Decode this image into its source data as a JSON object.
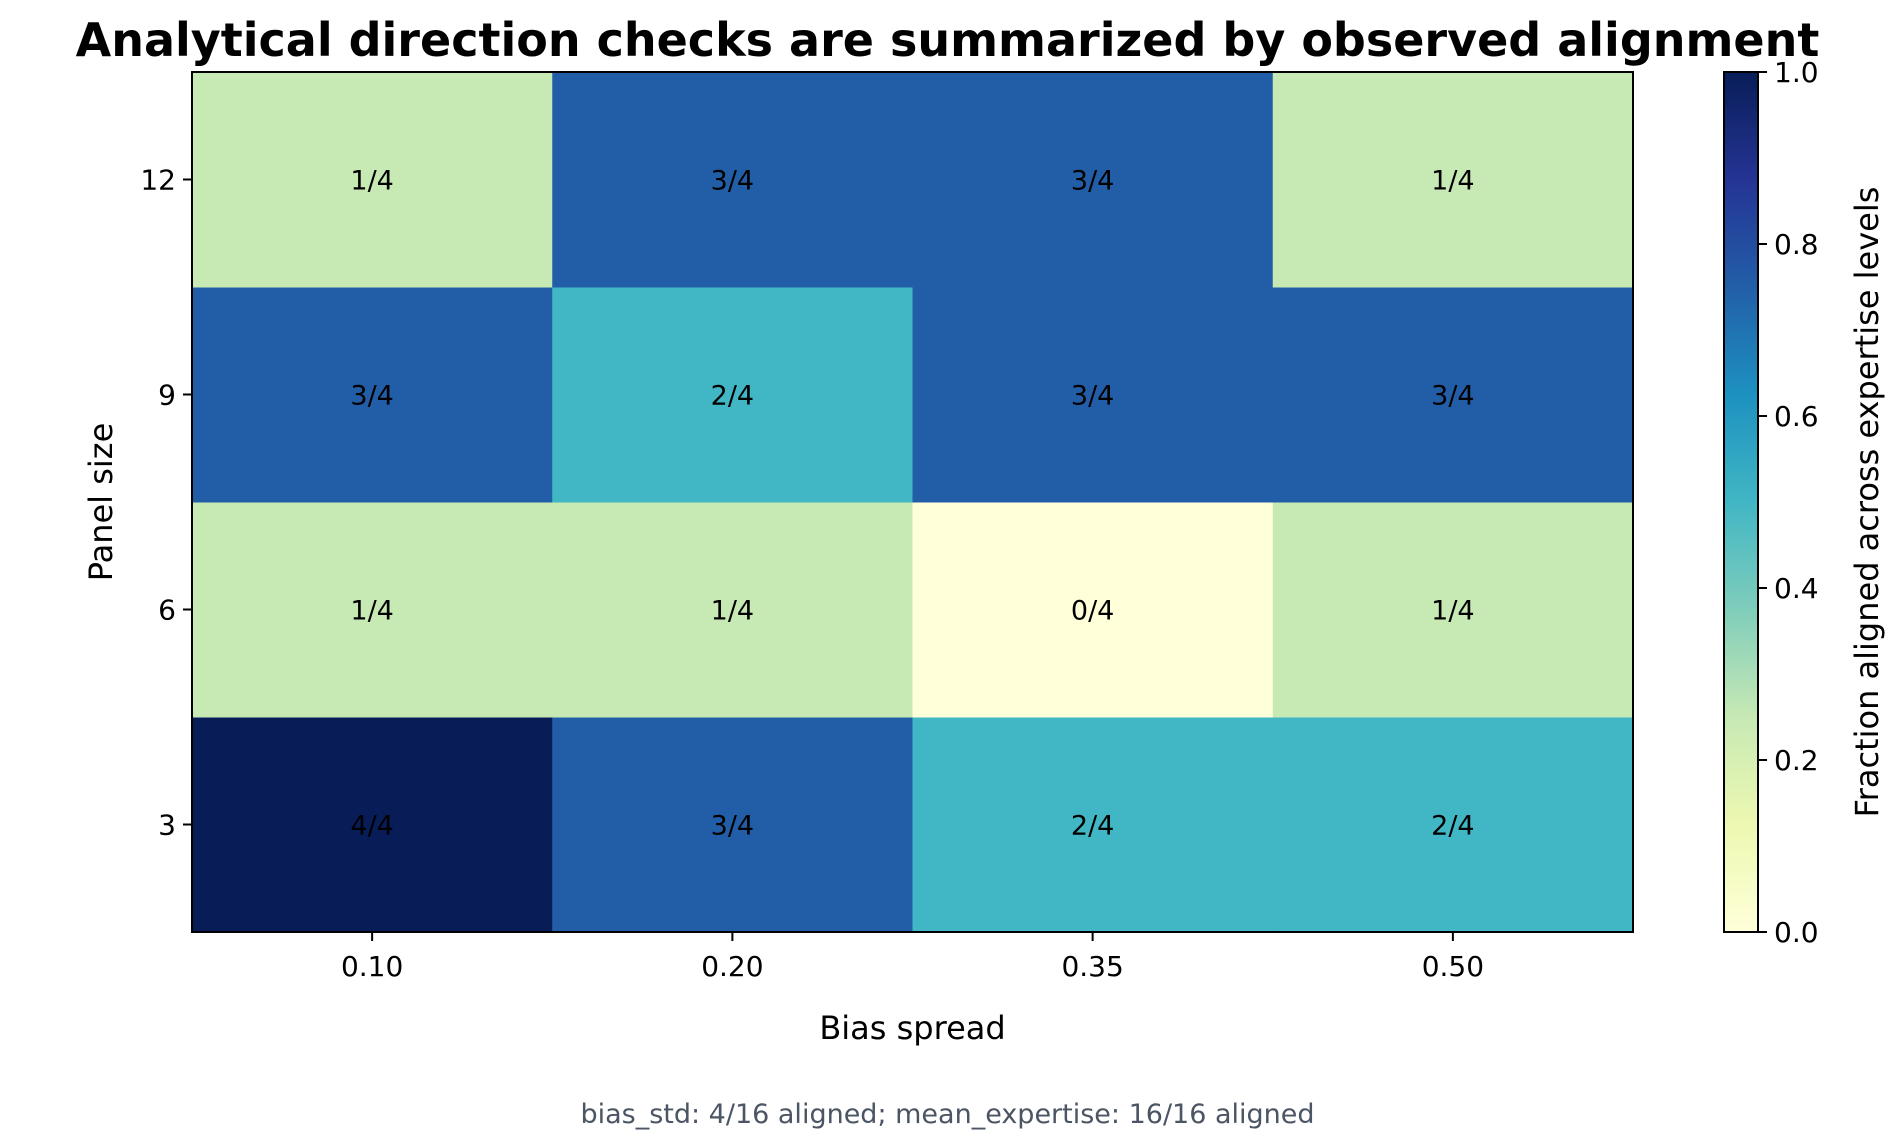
{
  "chart_data": {
    "type": "heatmap",
    "title": "Analytical direction checks are summarized by observed alignment",
    "xlabel": "Bias spread",
    "ylabel": "Panel size",
    "x_categories": [
      "0.10",
      "0.20",
      "0.35",
      "0.50"
    ],
    "y_categories": [
      "3",
      "6",
      "9",
      "12"
    ],
    "values": [
      [
        1.0,
        0.75,
        0.5,
        0.5
      ],
      [
        0.25,
        0.25,
        0.0,
        0.25
      ],
      [
        0.75,
        0.5,
        0.75,
        0.75
      ],
      [
        0.25,
        0.75,
        0.75,
        0.25
      ]
    ],
    "cell_labels": [
      [
        "4/4",
        "3/4",
        "2/4",
        "2/4"
      ],
      [
        "1/4",
        "1/4",
        "0/4",
        "1/4"
      ],
      [
        "3/4",
        "2/4",
        "3/4",
        "3/4"
      ],
      [
        "1/4",
        "3/4",
        "3/4",
        "1/4"
      ]
    ],
    "colorbar": {
      "label": "Fraction aligned across expertise levels",
      "range": [
        0.0,
        1.0
      ],
      "ticks": [
        "0.0",
        "0.2",
        "0.4",
        "0.6",
        "0.8",
        "1.0"
      ],
      "colormap": "YlGnBu",
      "stops": [
        "#ffffd9",
        "#edf8b1",
        "#c7e9b4",
        "#7fcdbb",
        "#41b6c4",
        "#1d91c0",
        "#225ea8",
        "#253494",
        "#081d58"
      ]
    },
    "grid": false,
    "footer": "bias_std: 4/16 aligned; mean_expertise: 16/16 aligned"
  }
}
